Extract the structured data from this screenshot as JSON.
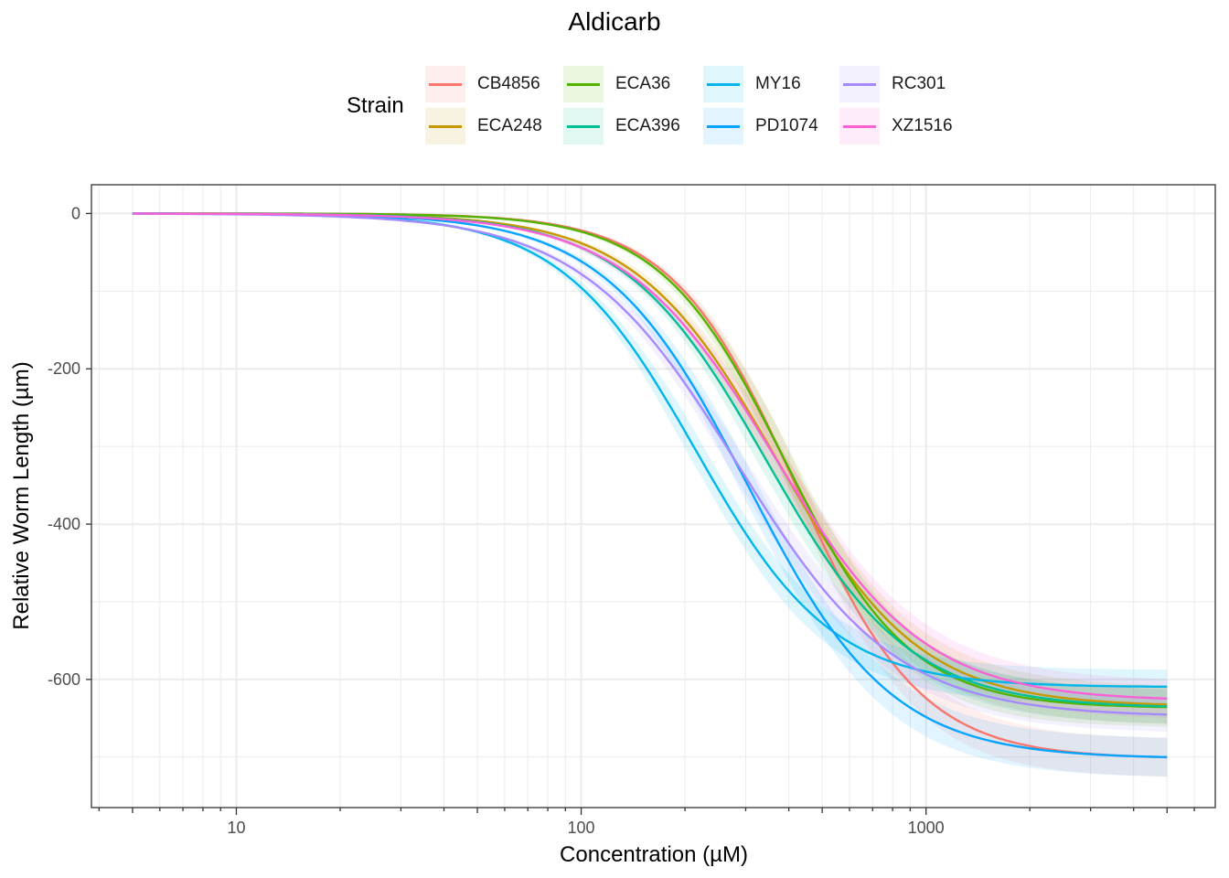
{
  "chart_data": {
    "type": "line",
    "title": "Aldicarb",
    "xlabel": "Concentration (µM)",
    "ylabel": "Relative Worm Length (µm)",
    "x_scale": "log10",
    "xlim": [
      3.8,
      6900
    ],
    "ylim": [
      -765,
      37
    ],
    "x_ticks": [
      10,
      100,
      1000
    ],
    "x_tick_labels": [
      "10",
      "100",
      "1000"
    ],
    "y_ticks": [
      0,
      -200,
      -400,
      -600
    ],
    "y_tick_labels": [
      "0",
      "-200",
      "-400",
      "-600"
    ],
    "x_range": [
      5,
      5000
    ],
    "grid": true,
    "legend": {
      "title": "Strain",
      "placement": "top"
    },
    "model": "log-logistic: y = bottom / (1 + (ec50 / x)^hill)",
    "series": [
      {
        "name": "CB4856",
        "color": "#F8766D",
        "bottom": -702,
        "ec50": 420,
        "hill": 2.4,
        "ci": 25
      },
      {
        "name": "ECA248",
        "color": "#C49A00",
        "bottom": -635,
        "ec50": 370,
        "hill": 2.1,
        "ci": 25
      },
      {
        "name": "ECA36",
        "color": "#53B400",
        "bottom": -637,
        "ec50": 390,
        "hill": 2.4,
        "ci": 25
      },
      {
        "name": "ECA396",
        "color": "#00C094",
        "bottom": -637,
        "ec50": 345,
        "hill": 2.1,
        "ci": 22
      },
      {
        "name": "MY16",
        "color": "#00B6EB",
        "bottom": -610,
        "ec50": 215,
        "hill": 2.2,
        "ci": 22
      },
      {
        "name": "PD1074",
        "color": "#06A4FF",
        "bottom": -702,
        "ec50": 305,
        "hill": 2.1,
        "ci": 25
      },
      {
        "name": "RC301",
        "color": "#A58AFF",
        "bottom": -648,
        "ec50": 285,
        "hill": 1.9,
        "ci": 22
      },
      {
        "name": "XZ1516",
        "color": "#FB61D7",
        "bottom": -628,
        "ec50": 365,
        "hill": 2.0,
        "ci": 25
      }
    ]
  }
}
